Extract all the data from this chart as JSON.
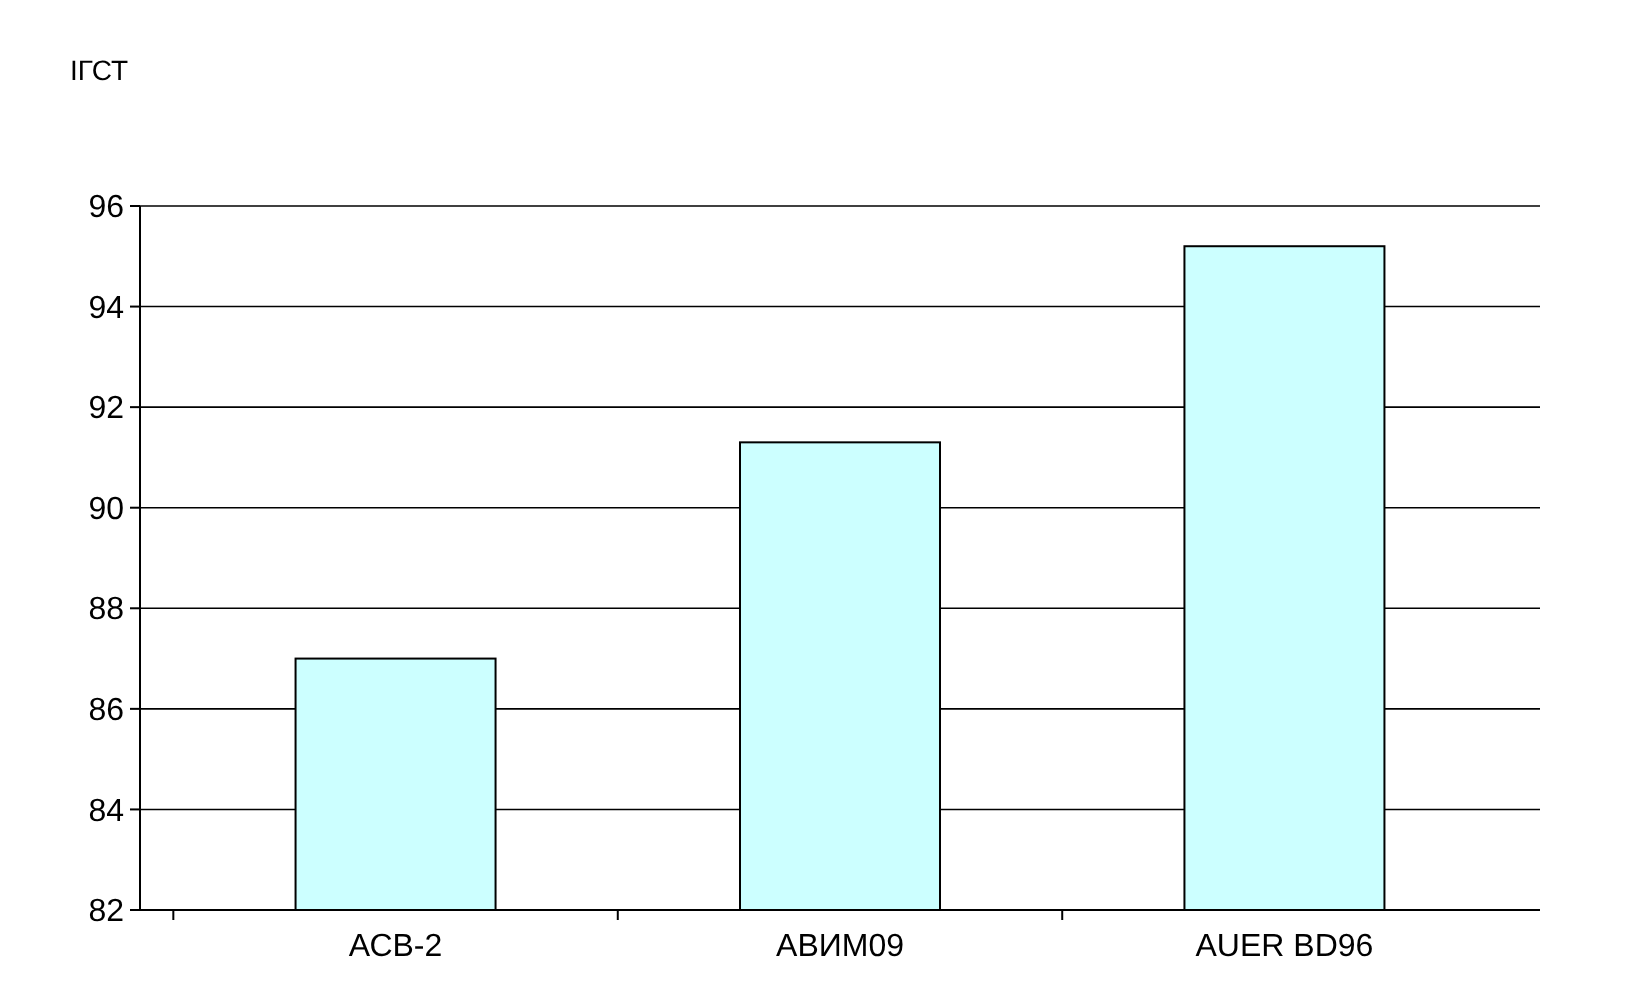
{
  "chart_data": {
    "type": "bar",
    "ylabel": "ІГСТ",
    "categories": [
      "АСВ-2",
      "АВИМ09",
      "AUER BD96"
    ],
    "values": [
      87,
      91.3,
      95.2
    ],
    "color": "#ccffff",
    "ylim": [
      82,
      96
    ],
    "yticks": [
      82,
      84,
      86,
      88,
      90,
      92,
      94,
      96
    ],
    "grid": "y"
  }
}
